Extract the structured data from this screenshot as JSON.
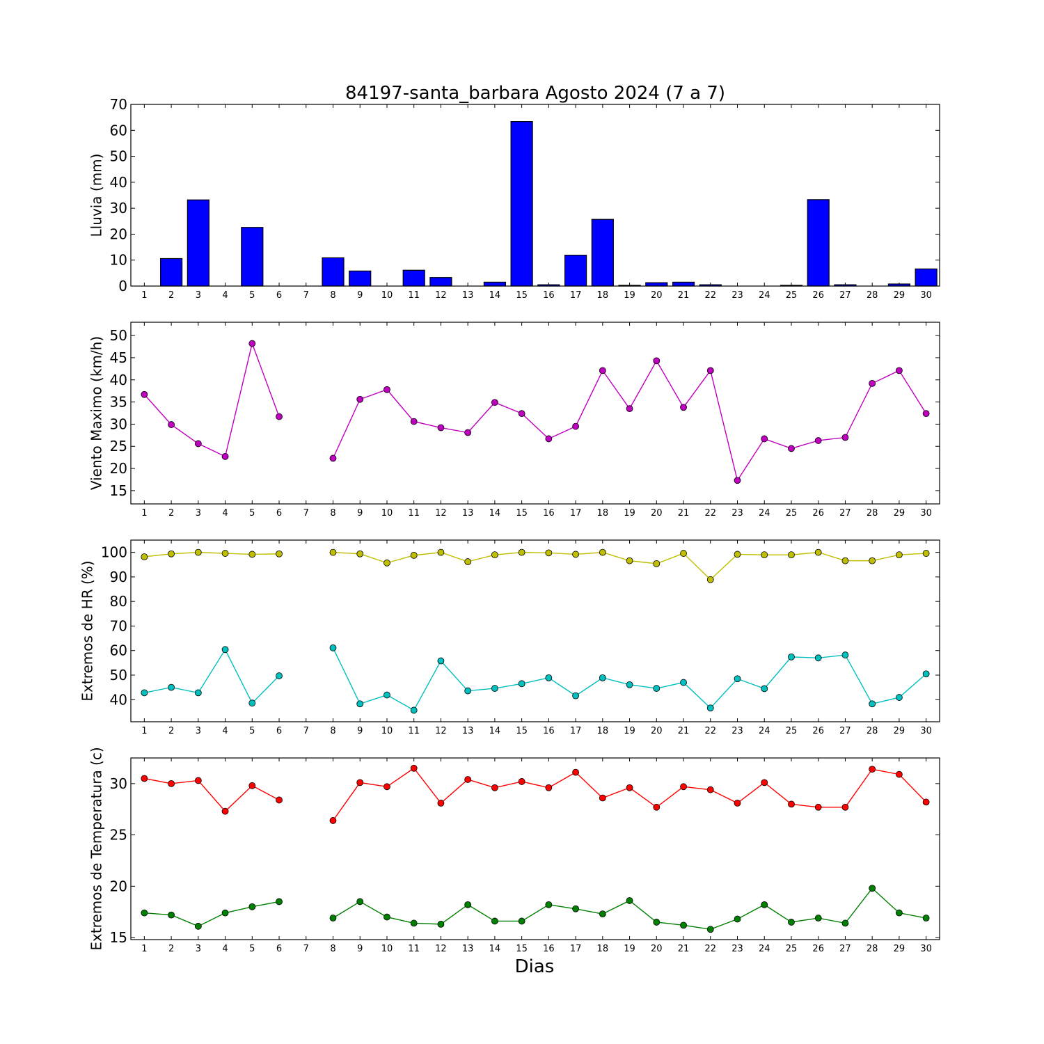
{
  "figure": {
    "title": "84197-santa_barbara Agosto 2024  (7 a 7)",
    "xlabel": "Dias"
  },
  "chart_data": [
    {
      "type": "bar",
      "ylabel": "Lluvia (mm)",
      "ylim": [
        0,
        70
      ],
      "yticks": [
        0,
        10,
        20,
        30,
        40,
        50,
        60,
        70
      ],
      "x": [
        1,
        2,
        3,
        4,
        5,
        6,
        7,
        8,
        9,
        10,
        11,
        12,
        13,
        14,
        15,
        16,
        17,
        18,
        19,
        20,
        21,
        22,
        23,
        24,
        25,
        26,
        27,
        28,
        29,
        30
      ],
      "xlim": [
        0.5,
        30.5
      ],
      "series": [
        {
          "color": "#0000ff",
          "values": [
            0,
            10.6,
            33.2,
            0,
            22.6,
            0,
            0,
            10.9,
            5.8,
            0,
            6.1,
            3.3,
            0,
            1.5,
            63.4,
            0.5,
            11.9,
            25.7,
            0.3,
            1.3,
            1.5,
            0.5,
            0,
            0,
            0.3,
            33.3,
            0.5,
            0,
            0.8,
            6.6
          ]
        }
      ]
    },
    {
      "type": "line",
      "ylabel": "Viento Maximo (km/h)",
      "ylim": [
        12,
        53
      ],
      "yticks": [
        15,
        20,
        25,
        30,
        35,
        40,
        45,
        50
      ],
      "x": [
        1,
        2,
        3,
        4,
        5,
        6,
        7,
        8,
        9,
        10,
        11,
        12,
        13,
        14,
        15,
        16,
        17,
        18,
        19,
        20,
        21,
        22,
        23,
        24,
        25,
        26,
        27,
        28,
        29,
        30
      ],
      "xlim": [
        0.5,
        30.5
      ],
      "series": [
        {
          "color": "#bf00bf",
          "values": [
            36.7,
            29.9,
            25.6,
            22.7,
            48.2,
            31.7,
            null,
            22.3,
            35.6,
            37.8,
            30.6,
            29.2,
            28.1,
            34.9,
            32.4,
            26.7,
            29.5,
            42.1,
            33.5,
            44.3,
            33.8,
            42.1,
            17.3,
            26.7,
            24.5,
            26.3,
            27.0,
            39.2,
            42.1,
            32.4
          ]
        }
      ]
    },
    {
      "type": "line",
      "ylabel": "Extremos de HR (%)",
      "ylim": [
        31,
        105
      ],
      "yticks": [
        40,
        50,
        60,
        70,
        80,
        90,
        100
      ],
      "x": [
        1,
        2,
        3,
        4,
        5,
        6,
        7,
        8,
        9,
        10,
        11,
        12,
        13,
        14,
        15,
        16,
        17,
        18,
        19,
        20,
        21,
        22,
        23,
        24,
        25,
        26,
        27,
        28,
        29,
        30
      ],
      "xlim": [
        0.5,
        30.5
      ],
      "series": [
        {
          "color": "#bfbf00",
          "values": [
            98.2,
            99.4,
            100,
            99.6,
            99.2,
            99.4,
            null,
            100,
            99.4,
            95.7,
            98.8,
            100,
            96.2,
            99.0,
            100,
            99.8,
            99.2,
            100,
            96.6,
            95.4,
            99.6,
            88.9,
            99.2,
            99.0,
            99.0,
            100,
            96.6,
            96.6,
            99.0,
            99.6
          ]
        },
        {
          "color": "#00bfbf",
          "values": [
            42.8,
            45.0,
            42.8,
            60.4,
            38.6,
            49.7,
            null,
            61.1,
            38.3,
            41.9,
            35.7,
            55.8,
            43.6,
            44.6,
            46.5,
            48.9,
            41.6,
            48.9,
            46.1,
            44.6,
            47.0,
            36.6,
            48.5,
            44.5,
            57.4,
            57.0,
            58.2,
            38.3,
            40.9,
            50.5
          ]
        }
      ]
    },
    {
      "type": "line",
      "ylabel": "Extremos de Temperatura (c)",
      "ylim": [
        14.8,
        32.5
      ],
      "yticks": [
        15,
        20,
        25,
        30
      ],
      "x": [
        1,
        2,
        3,
        4,
        5,
        6,
        7,
        8,
        9,
        10,
        11,
        12,
        13,
        14,
        15,
        16,
        17,
        18,
        19,
        20,
        21,
        22,
        23,
        24,
        25,
        26,
        27,
        28,
        29,
        30
      ],
      "xlim": [
        0.5,
        30.5
      ],
      "series": [
        {
          "color": "#ff0000",
          "values": [
            30.5,
            30.0,
            30.3,
            27.3,
            29.8,
            28.4,
            null,
            26.4,
            30.1,
            29.7,
            31.5,
            28.1,
            30.4,
            29.6,
            30.2,
            29.6,
            31.1,
            28.6,
            29.6,
            27.7,
            29.7,
            29.4,
            28.1,
            30.1,
            28.0,
            27.7,
            27.7,
            31.4,
            30.9,
            28.2
          ]
        },
        {
          "color": "#008000",
          "values": [
            17.4,
            17.2,
            16.1,
            17.4,
            18.0,
            18.5,
            null,
            16.9,
            18.5,
            17.0,
            16.4,
            16.3,
            18.2,
            16.6,
            16.6,
            18.2,
            17.8,
            17.3,
            18.6,
            16.5,
            16.2,
            15.8,
            16.8,
            18.2,
            16.5,
            16.9,
            16.4,
            19.8,
            17.4,
            16.9
          ]
        }
      ]
    }
  ]
}
